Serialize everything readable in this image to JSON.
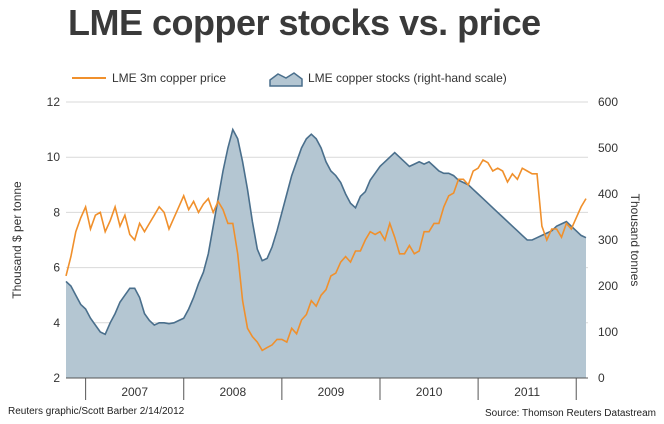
{
  "title": "LME copper stocks vs. price",
  "credit": "Reuters graphic/Scott Barber 2/14/2012",
  "source": "Source: Thomson Reuters Datastream",
  "colors": {
    "price": "#f0902c",
    "stocks_line": "#4a6f8c",
    "stocks_fill": "#b4c6d2",
    "grid": "#d9d9d9"
  },
  "chart_data": {
    "type": "line",
    "ylabel": "Thousand $ per tonne",
    "ylabel_right": "Thousand tonnes",
    "ylim": [
      2,
      12
    ],
    "yticks": [
      2,
      4,
      6,
      8,
      10,
      12
    ],
    "ylim_right": [
      0,
      600
    ],
    "yticks_right": [
      0,
      100,
      200,
      300,
      400,
      500,
      600
    ],
    "xlim": [
      2006.8,
      2012.12
    ],
    "x_year_labels": [
      "2007",
      "2008",
      "2009",
      "2010",
      "2011"
    ],
    "grid": true,
    "legend": "top",
    "series": [
      {
        "name": "LME 3m copper price",
        "axis": "left",
        "x": [
          2006.8,
          2006.85,
          2006.9,
          2006.95,
          2007.0,
          2007.05,
          2007.1,
          2007.15,
          2007.2,
          2007.25,
          2007.3,
          2007.35,
          2007.4,
          2007.45,
          2007.5,
          2007.55,
          2007.6,
          2007.65,
          2007.7,
          2007.75,
          2007.8,
          2007.85,
          2007.9,
          2007.95,
          2008.0,
          2008.05,
          2008.1,
          2008.15,
          2008.2,
          2008.25,
          2008.3,
          2008.35,
          2008.4,
          2008.45,
          2008.5,
          2008.55,
          2008.6,
          2008.65,
          2008.7,
          2008.75,
          2008.8,
          2008.85,
          2008.9,
          2008.95,
          2009.0,
          2009.05,
          2009.1,
          2009.15,
          2009.2,
          2009.25,
          2009.3,
          2009.35,
          2009.4,
          2009.45,
          2009.5,
          2009.55,
          2009.6,
          2009.65,
          2009.7,
          2009.75,
          2009.8,
          2009.85,
          2009.9,
          2009.95,
          2010.0,
          2010.05,
          2010.1,
          2010.15,
          2010.2,
          2010.25,
          2010.3,
          2010.35,
          2010.4,
          2010.45,
          2010.5,
          2010.55,
          2010.6,
          2010.65,
          2010.7,
          2010.75,
          2010.8,
          2010.85,
          2010.9,
          2010.95,
          2011.0,
          2011.05,
          2011.1,
          2011.15,
          2011.2,
          2011.25,
          2011.3,
          2011.35,
          2011.4,
          2011.45,
          2011.5,
          2011.55,
          2011.6,
          2011.65,
          2011.7,
          2011.75,
          2011.8,
          2011.85,
          2011.9,
          2011.95,
          2012.0,
          2012.05,
          2012.1
        ],
        "values": [
          5.7,
          6.4,
          7.3,
          7.8,
          8.2,
          7.4,
          7.9,
          8.0,
          7.3,
          7.7,
          8.2,
          7.5,
          7.9,
          7.2,
          7.0,
          7.6,
          7.3,
          7.6,
          7.9,
          8.2,
          8.0,
          7.4,
          7.8,
          8.2,
          8.6,
          8.1,
          8.4,
          8.0,
          8.3,
          8.5,
          8.0,
          8.4,
          8.1,
          7.6,
          7.6,
          6.5,
          4.8,
          3.8,
          3.5,
          3.3,
          3.0,
          3.1,
          3.2,
          3.4,
          3.4,
          3.3,
          3.8,
          3.6,
          4.1,
          4.3,
          4.8,
          4.6,
          5.0,
          5.2,
          5.7,
          5.8,
          6.2,
          6.4,
          6.2,
          6.6,
          6.6,
          7.0,
          7.3,
          7.2,
          7.3,
          7.0,
          7.6,
          7.1,
          6.5,
          6.5,
          6.8,
          6.5,
          6.6,
          7.3,
          7.3,
          7.6,
          7.6,
          8.2,
          8.6,
          8.7,
          9.2,
          9.2,
          9.0,
          9.5,
          9.6,
          9.9,
          9.8,
          9.5,
          9.6,
          9.5,
          9.1,
          9.4,
          9.2,
          9.6,
          9.5,
          9.4,
          9.4,
          7.5,
          7.0,
          7.4,
          7.4,
          7.1,
          7.6,
          7.4,
          7.8,
          8.2,
          8.5
        ]
      },
      {
        "name": "LME copper stocks (right-hand scale)",
        "axis": "right",
        "x": [
          2006.8,
          2006.85,
          2006.9,
          2006.95,
          2007.0,
          2007.05,
          2007.1,
          2007.15,
          2007.2,
          2007.25,
          2007.3,
          2007.35,
          2007.4,
          2007.45,
          2007.5,
          2007.55,
          2007.6,
          2007.65,
          2007.7,
          2007.75,
          2007.8,
          2007.85,
          2007.9,
          2007.95,
          2008.0,
          2008.05,
          2008.1,
          2008.15,
          2008.2,
          2008.25,
          2008.3,
          2008.35,
          2008.4,
          2008.45,
          2008.5,
          2008.55,
          2008.6,
          2008.65,
          2008.7,
          2008.75,
          2008.8,
          2008.85,
          2008.9,
          2008.95,
          2009.0,
          2009.05,
          2009.1,
          2009.15,
          2009.2,
          2009.25,
          2009.3,
          2009.35,
          2009.4,
          2009.45,
          2009.5,
          2009.55,
          2009.6,
          2009.65,
          2009.7,
          2009.75,
          2009.8,
          2009.85,
          2009.9,
          2009.95,
          2010.0,
          2010.05,
          2010.1,
          2010.15,
          2010.2,
          2010.25,
          2010.3,
          2010.35,
          2010.4,
          2010.45,
          2010.5,
          2010.55,
          2010.6,
          2010.65,
          2010.7,
          2010.75,
          2010.8,
          2010.85,
          2010.9,
          2010.95,
          2011.0,
          2011.05,
          2011.1,
          2011.15,
          2011.2,
          2011.25,
          2011.3,
          2011.35,
          2011.4,
          2011.45,
          2011.5,
          2011.55,
          2011.6,
          2011.65,
          2011.7,
          2011.75,
          2011.8,
          2011.85,
          2011.9,
          2011.95,
          2012.0,
          2012.05,
          2012.1
        ],
        "values": [
          210,
          200,
          180,
          160,
          150,
          130,
          115,
          100,
          95,
          120,
          140,
          165,
          180,
          195,
          195,
          175,
          140,
          125,
          115,
          120,
          120,
          118,
          120,
          125,
          130,
          150,
          175,
          205,
          230,
          270,
          330,
          390,
          450,
          500,
          540,
          520,
          470,
          410,
          340,
          280,
          255,
          260,
          285,
          320,
          360,
          400,
          440,
          470,
          500,
          520,
          530,
          520,
          500,
          470,
          450,
          440,
          425,
          400,
          380,
          370,
          395,
          405,
          430,
          445,
          460,
          470,
          480,
          490,
          480,
          470,
          460,
          465,
          470,
          465,
          470,
          460,
          450,
          445,
          445,
          440,
          430,
          425,
          420,
          410,
          400,
          390,
          380,
          370,
          360,
          350,
          340,
          330,
          320,
          310,
          300,
          300,
          305,
          310,
          315,
          320,
          330,
          335,
          340,
          330,
          320,
          310,
          305
        ]
      }
    ]
  }
}
